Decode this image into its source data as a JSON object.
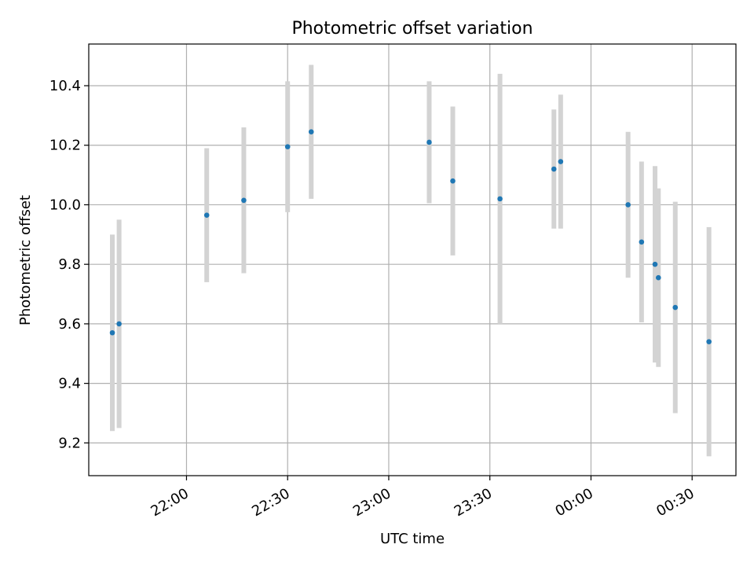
{
  "chart_data": {
    "type": "scatter",
    "title": "Photometric offset variation",
    "xlabel": "UTC time",
    "ylabel": "Photometric offset",
    "x_ticks": [
      "22:00",
      "22:30",
      "23:00",
      "23:30",
      "00:00",
      "00:30"
    ],
    "y_ticks": [
      "9.2",
      "9.4",
      "9.6",
      "9.8",
      "10.0",
      "10.2",
      "10.4"
    ],
    "x_tick_minutes": [
      0,
      30,
      60,
      90,
      120,
      150
    ],
    "y_tick_values": [
      9.2,
      9.4,
      9.6,
      9.8,
      10.0,
      10.2,
      10.4
    ],
    "xlim": [
      "21:31",
      "00:43"
    ],
    "ylim": [
      9.09,
      10.54
    ],
    "grid": true,
    "colors": {
      "point": "#1f77b4",
      "errorbar": "#d3d3d3",
      "grid": "#b0b0b0",
      "axes": "#000000"
    },
    "points": [
      {
        "t": "21:38",
        "y": 9.57,
        "err": 0.33
      },
      {
        "t": "21:40",
        "y": 9.6,
        "err": 0.35
      },
      {
        "t": "22:06",
        "y": 9.965,
        "err": 0.225
      },
      {
        "t": "22:17",
        "y": 10.015,
        "err": 0.245
      },
      {
        "t": "22:30",
        "y": 10.195,
        "err": 0.22
      },
      {
        "t": "22:37",
        "y": 10.245,
        "err": 0.225
      },
      {
        "t": "23:12",
        "y": 10.21,
        "err": 0.205
      },
      {
        "t": "23:19",
        "y": 10.08,
        "err": 0.25
      },
      {
        "t": "23:33",
        "y": 10.02,
        "err": 0.42
      },
      {
        "t": "23:49",
        "y": 10.12,
        "err": 0.2
      },
      {
        "t": "23:51",
        "y": 10.145,
        "err": 0.225
      },
      {
        "t": "00:11",
        "y": 10.0,
        "err": 0.245
      },
      {
        "t": "00:15",
        "y": 9.875,
        "err": 0.27
      },
      {
        "t": "00:19",
        "y": 9.8,
        "err": 0.33
      },
      {
        "t": "00:20",
        "y": 9.755,
        "err": 0.3
      },
      {
        "t": "00:25",
        "y": 9.655,
        "err": 0.355
      },
      {
        "t": "00:35",
        "y": 9.54,
        "err": 0.385
      }
    ]
  }
}
